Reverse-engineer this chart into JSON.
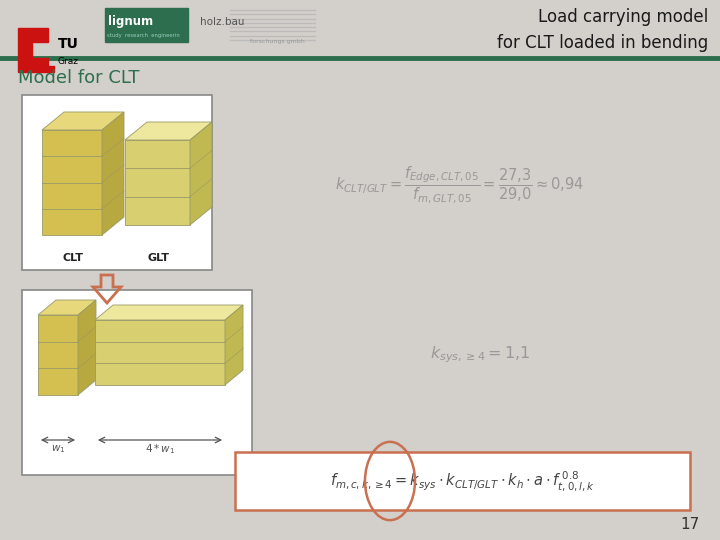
{
  "bg_color": "#d3cfca",
  "title_text": "Load carrying model\nfor CLT loaded in bending",
  "title_fontsize": 12,
  "title_color": "#1a1a1a",
  "header_bar_color": "#2d6e4e",
  "section_title": "Model for CLT",
  "section_title_color": "#2d6e4e",
  "section_title_fontsize": 13,
  "page_number": "17",
  "formula_color": "#999999",
  "formula_box_edge_color": "#c87050",
  "arrow_color": "#c87050",
  "box_edge_color": "#888888",
  "wood_front": "#d4c050",
  "wood_top": "#e8d87c",
  "wood_side": "#b8a840",
  "wood_front2": "#d8d070",
  "wood_top2": "#ede89e",
  "wood_side2": "#c0b850",
  "wood_edge": "#999966"
}
